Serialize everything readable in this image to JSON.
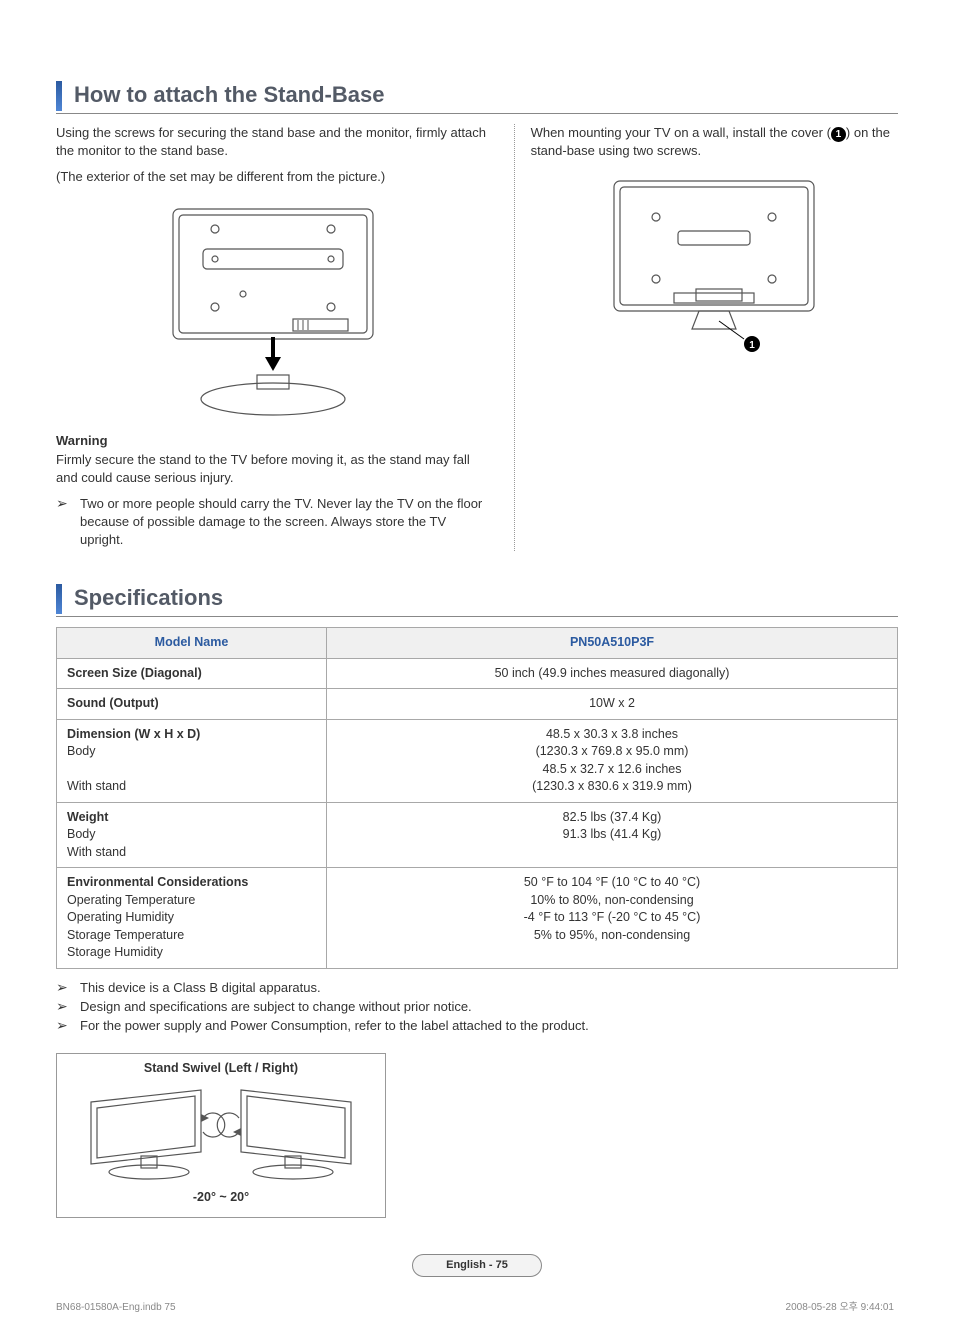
{
  "section1": {
    "title": "How to attach the Stand-Base",
    "left_intro_1": "Using the screws for securing the stand base and the monitor, firmly attach the monitor to the stand base.",
    "left_intro_2": "(The exterior of the set may be different from the picture.)",
    "warning_label": "Warning",
    "warning_text": "Firmly secure the stand to the TV before moving it, as the stand may fall and could cause serious injury.",
    "bullet_text": "Two or more people should carry the TV. Never lay the TV on the floor because of possible damage to the screen. Always store the TV upright.",
    "right_intro_pre": "When mounting your TV on a wall, install the cover (",
    "right_intro_post": ") on the stand-base using two screws.",
    "callout": "1"
  },
  "section2": {
    "title": "Specifications",
    "table": {
      "header_left": "Model Name",
      "header_right": "PN50A510P3F",
      "rows": [
        {
          "label": "Screen Size (Diagonal)",
          "sub": [],
          "vals": [
            "50 inch (49.9 inches measured diagonally)"
          ]
        },
        {
          "label": "Sound (Output)",
          "sub": [],
          "vals": [
            "10W x 2"
          ]
        },
        {
          "label": "Dimension (W x H x D)",
          "sub": [
            "Body",
            "",
            "With stand"
          ],
          "vals": [
            "48.5 x 30.3 x 3.8 inches",
            "(1230.3 x 769.8 x 95.0 mm)",
            "48.5 x 32.7 x 12.6 inches",
            "(1230.3 x 830.6 x 319.9 mm)"
          ]
        },
        {
          "label": "Weight",
          "sub": [
            "Body",
            "With stand"
          ],
          "vals": [
            "82.5 lbs (37.4 Kg)",
            "91.3 lbs (41.4 Kg)"
          ]
        },
        {
          "label": "Environmental Considerations",
          "sub": [
            "Operating Temperature",
            "Operating Humidity",
            "Storage Temperature",
            "Storage Humidity"
          ],
          "vals": [
            "50 °F to 104 °F (10 °C to 40 °C)",
            "10% to 80%, non-condensing",
            "-4 °F to 113 °F (-20 °C to 45 °C)",
            "5% to 95%, non-condensing"
          ]
        }
      ]
    },
    "notes": [
      "This device is a Class B digital apparatus.",
      "Design and specifications are subject to change without prior notice.",
      "For the power supply and Power Consumption, refer to the label attached to the product."
    ],
    "swivel_title": "Stand Swivel (Left / Right)",
    "swivel_range": "-20° ~ 20°"
  },
  "footer": {
    "pill": "English - 75",
    "left_meta": "BN68-01580A-Eng.indb   75",
    "right_meta": "2008-05-28   오후 9:44:01"
  },
  "styling": {
    "heading_color": "#535a66",
    "accent_color": "#2b5aa0",
    "border_color": "#a8a8a8",
    "bg_color": "#ffffff"
  }
}
